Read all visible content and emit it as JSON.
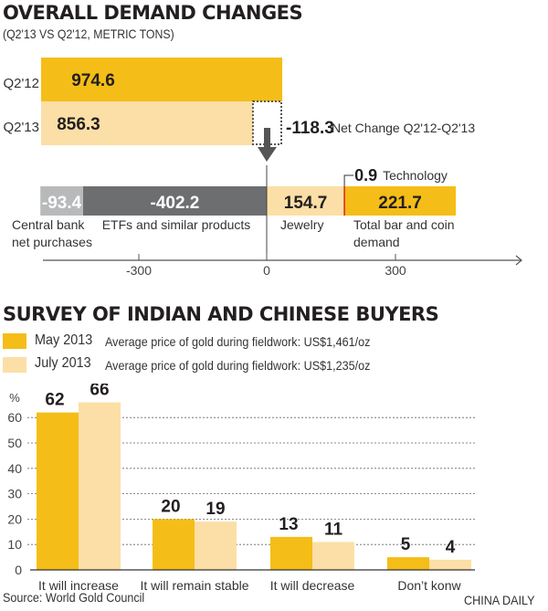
{
  "colors": {
    "gold": "#f5bd17",
    "light": "#fbdfa6",
    "dark_gray": "#6d6e70",
    "light_gray": "#b8b9bb",
    "red": "#e2231a"
  },
  "chart_data": [
    {
      "type": "bar",
      "title": "OVERALL DEMAND CHANGES",
      "subtitle": "(Q2'13 VS Q2'12, METRIC TONS)",
      "totals": [
        {
          "label": "Q2'12",
          "value": 974.6,
          "display": "974.6"
        },
        {
          "label": "Q2'13",
          "value": 856.3,
          "display": "856.3"
        }
      ],
      "net_change": {
        "value": -118.3,
        "display": "-118.3",
        "label": "Net Change Q2'12-Q2'13"
      },
      "components": [
        {
          "label": "Central bank net purchases",
          "value": -93.4,
          "display": "-93.4"
        },
        {
          "label": "ETFs and similar products",
          "value": -402.2,
          "display": "-402.2"
        },
        {
          "label": "Jewelry",
          "value": 154.7,
          "display": "154.7"
        },
        {
          "label": "Technology",
          "value": 0.9,
          "display": "0.9"
        },
        {
          "label": "Total bar and coin demand",
          "value": 221.7,
          "display": "221.7"
        }
      ],
      "x_ticks": [
        "-300",
        "0",
        "300"
      ]
    },
    {
      "type": "bar",
      "title": "SURVEY OF INDIAN AND CHINESE BUYERS",
      "ylabel": "%",
      "ylim": [
        0,
        70
      ],
      "y_ticks": [
        "0",
        "10",
        "20",
        "30",
        "40",
        "50",
        "60"
      ],
      "grid": true,
      "categories": [
        "It will increase",
        "It will remain stable",
        "It will decrease",
        "Don’t konw"
      ],
      "series": [
        {
          "name": "May 2013",
          "note": "Average price of gold during fieldwork: US$1,461/oz",
          "values": [
            62,
            20,
            13,
            5
          ]
        },
        {
          "name": "July 2013",
          "note": "Average price of gold during fieldwork: US$1,235/oz",
          "values": [
            66,
            19,
            11,
            4
          ]
        }
      ]
    }
  ],
  "footer": {
    "source": "Source: World Gold Council",
    "credit": "CHINA DAILY"
  }
}
